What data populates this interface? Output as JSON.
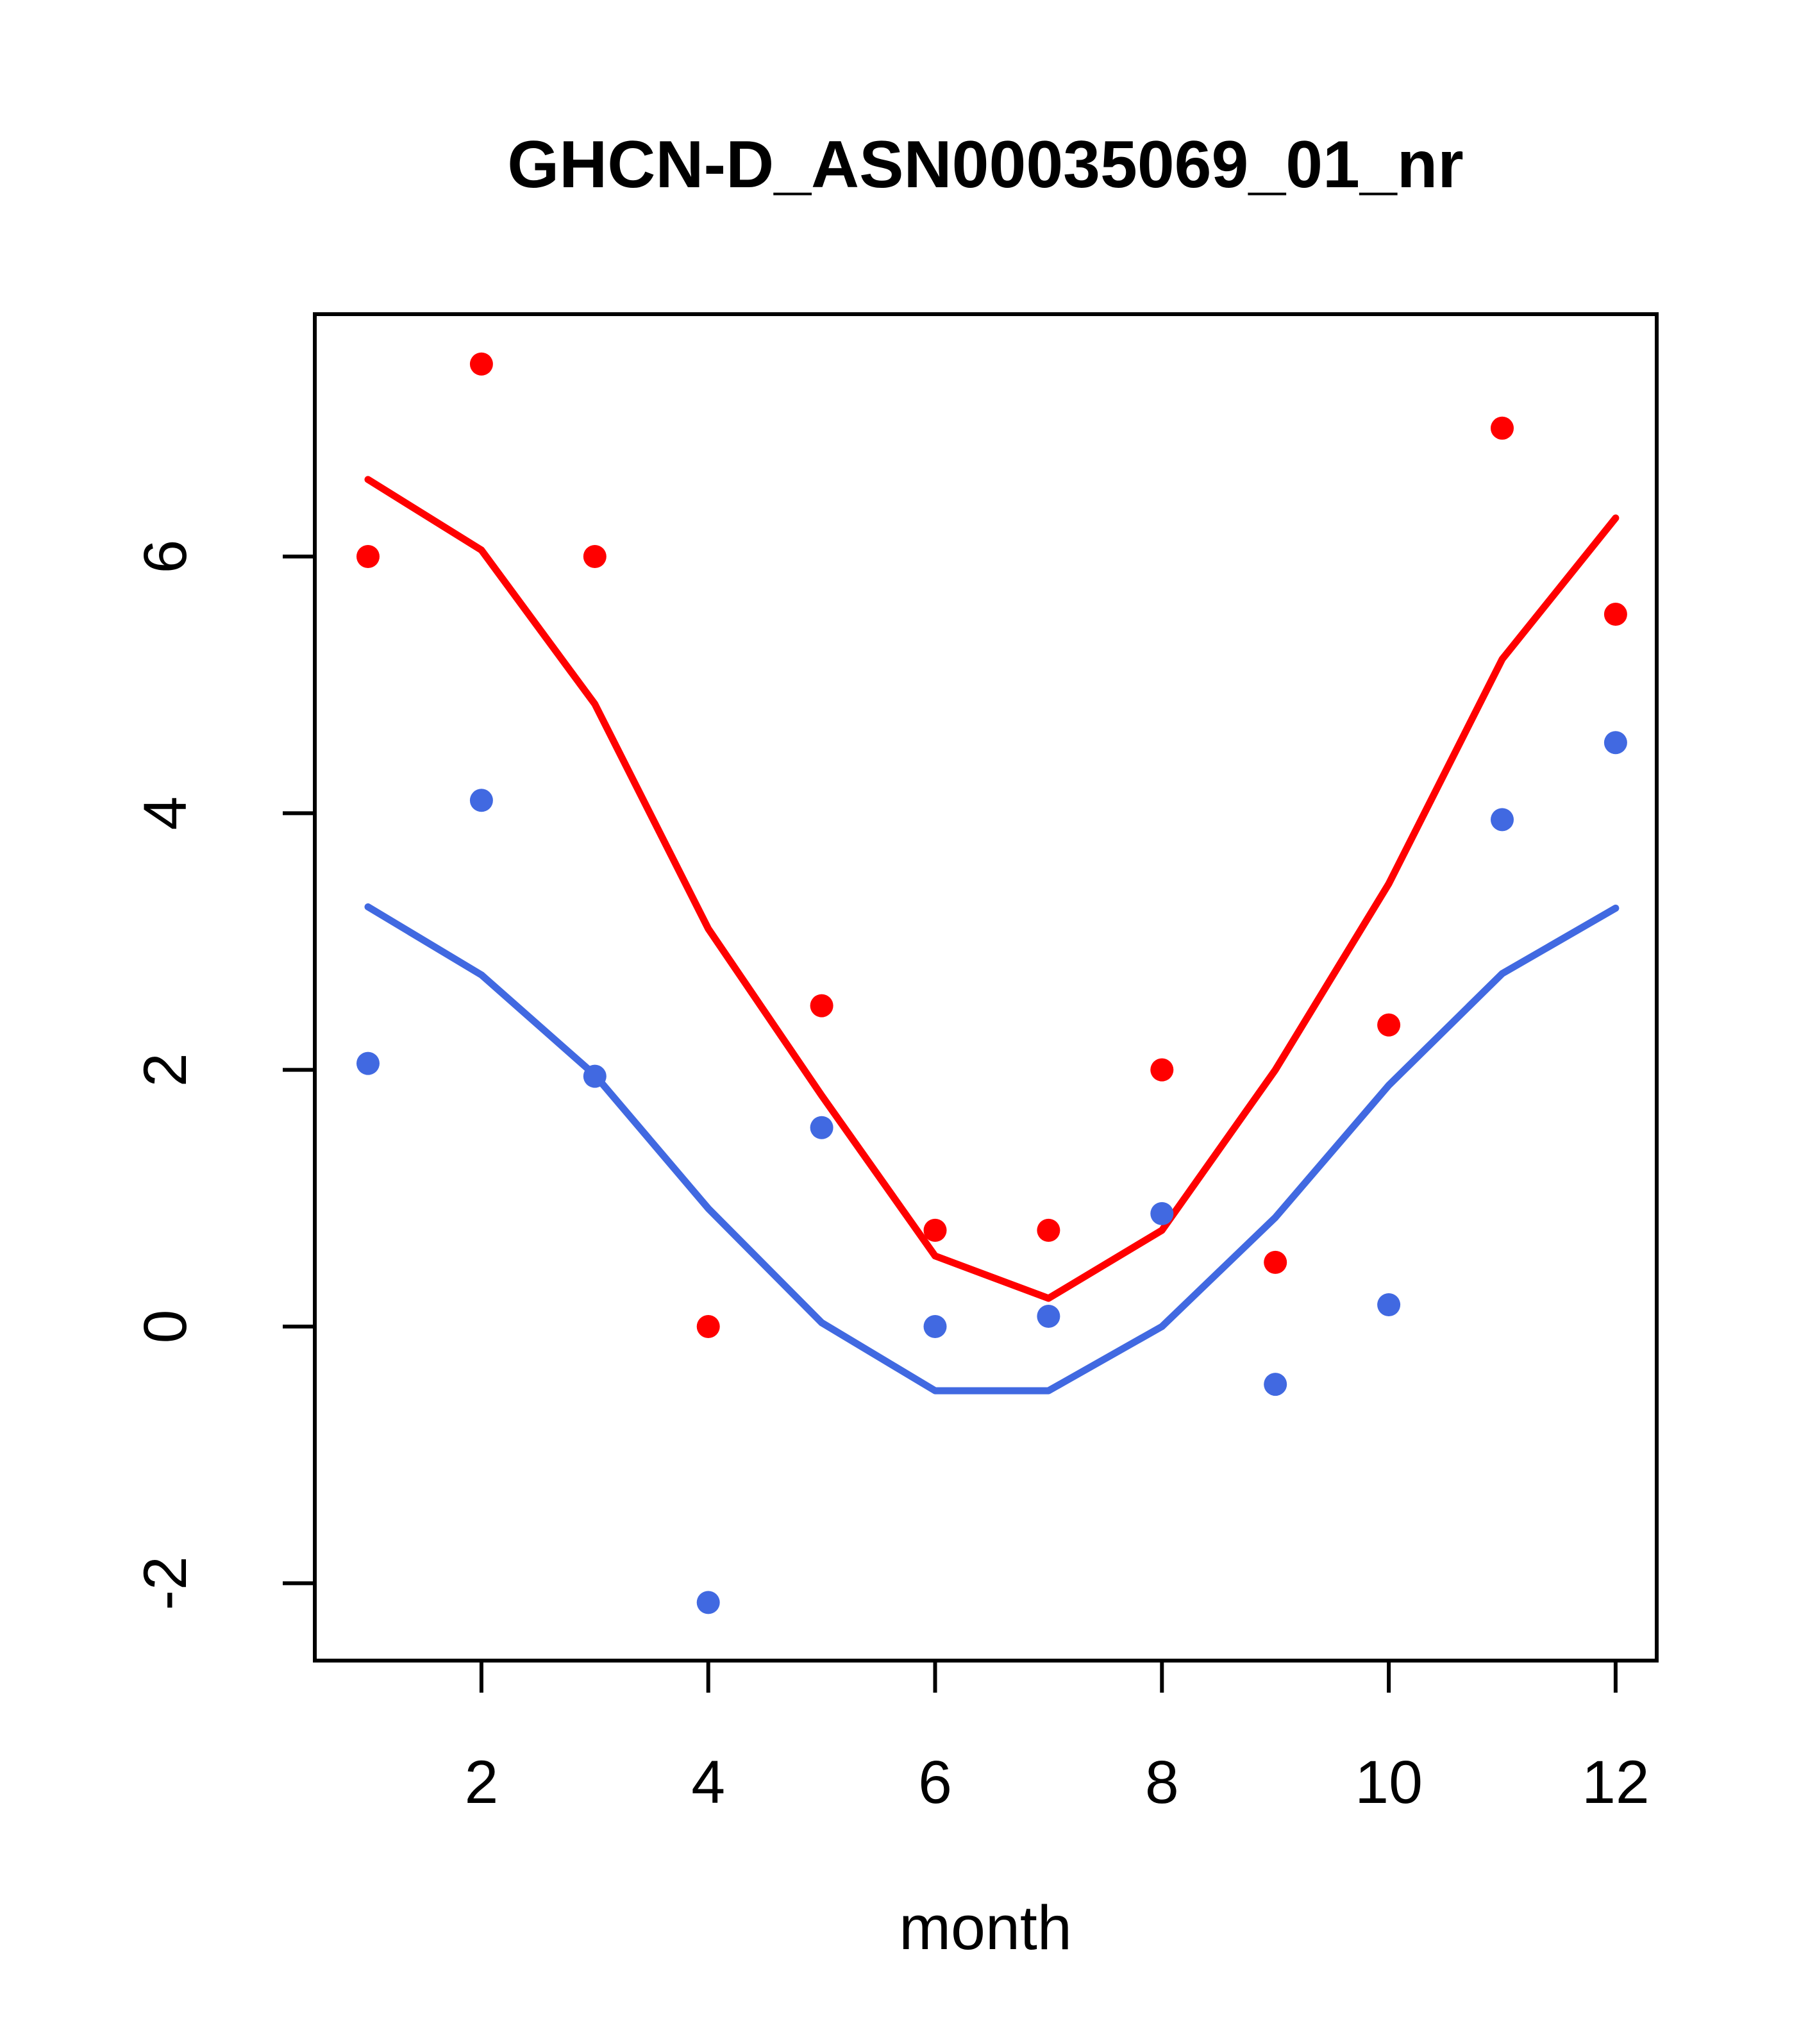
{
  "title": "GHCN-D_ASN00035069_01_nr",
  "x_axis": {
    "label": "month",
    "ticks": [
      2,
      4,
      6,
      8,
      10,
      12
    ]
  },
  "y_axis": {
    "label": "",
    "ticks": [
      -2,
      0,
      2,
      4,
      6
    ]
  },
  "colors": {
    "red_series": "#FF0000",
    "blue_series": "#4169E1",
    "axis": "#000000",
    "background": "#FFFFFF"
  },
  "chart_data": {
    "type": "scatter",
    "title": "GHCN-D_ASN00035069_01_nr",
    "xlabel": "month",
    "ylabel": "",
    "x": [
      1,
      2,
      3,
      4,
      5,
      6,
      7,
      8,
      9,
      10,
      11,
      12
    ],
    "xlim": [
      0.5,
      12.4
    ],
    "ylim": [
      -2.6,
      7.9
    ],
    "grid": false,
    "legend_position": null,
    "series": [
      {
        "name": "red-points",
        "kind": "points",
        "color": "#FF0000",
        "values": [
          6.0,
          7.5,
          6.0,
          0.0,
          2.5,
          0.75,
          0.75,
          2.0,
          0.5,
          2.35,
          7.0,
          5.55
        ]
      },
      {
        "name": "blue-points",
        "kind": "points",
        "color": "#4169E1",
        "values": [
          2.05,
          4.1,
          1.95,
          -2.15,
          1.55,
          0.0,
          0.08,
          0.88,
          -0.45,
          0.17,
          3.95,
          4.55
        ]
      },
      {
        "name": "red-trend-line",
        "kind": "line",
        "color": "#FF0000",
        "values": [
          6.6,
          6.05,
          4.85,
          3.1,
          1.8,
          0.55,
          0.22,
          0.75,
          2.0,
          3.45,
          5.2,
          6.3
        ]
      },
      {
        "name": "blue-trend-line",
        "kind": "line",
        "color": "#4169E1",
        "values": [
          3.27,
          2.74,
          1.96,
          0.92,
          0.03,
          -0.5,
          -0.5,
          0.0,
          0.85,
          1.88,
          2.75,
          3.26
        ]
      }
    ]
  }
}
